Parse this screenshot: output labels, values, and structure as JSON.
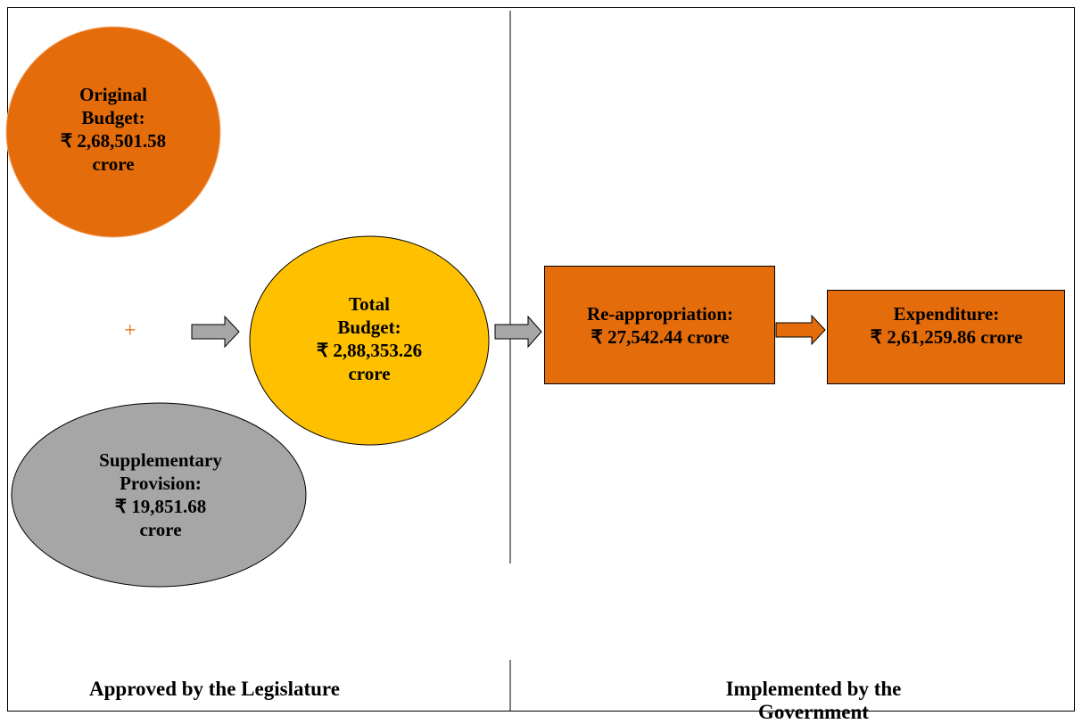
{
  "nodes": [
    {
      "label": "Original Budget:",
      "amount": "₹ 2,68,501.58 crore"
    },
    {
      "label": "Supplementary Provision:",
      "amount": "₹ 19,851.68 crore"
    },
    {
      "label": "Total Budget:",
      "amount": "₹ 2,88,353.26 crore"
    },
    {
      "label": "Re-appropriation:",
      "amount": "₹ 27,542.44 crore"
    },
    {
      "label": "Expenditure:",
      "amount": "₹ 2,61,259.86 crore"
    }
  ],
  "plus": "+",
  "footer": {
    "left": "Approved by the Legislature",
    "right": "Implemented by the Government"
  }
}
